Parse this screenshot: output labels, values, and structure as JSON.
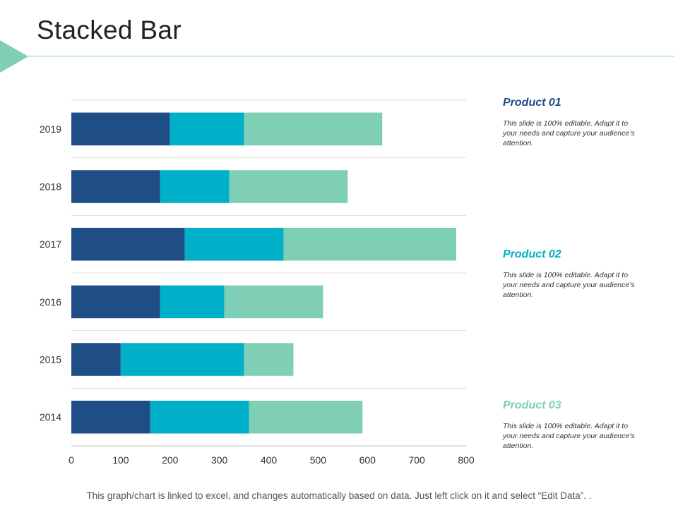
{
  "slide": {
    "title": "Stacked Bar",
    "footer": "This graph/chart is linked to excel, and changes automatically based on data. Just left click on it and select “Edit Data”. ."
  },
  "products": [
    {
      "name": "Product 01",
      "color": "#1f4e87",
      "description": "This slide is 100% editable. Adapt it to your needs and capture your audience’s attention."
    },
    {
      "name": "Product 02",
      "color": "#00b0c8",
      "description": "This slide is 100% editable. Adapt it to your needs and capture your audience’s attention."
    },
    {
      "name": "Product 03",
      "color": "#7ecfb5",
      "description": "This slide is 100% editable. Adapt it to your needs and capture your audience’s attention."
    }
  ],
  "chart_data": {
    "type": "bar",
    "orientation": "horizontal",
    "stacked": true,
    "categories": [
      "2019",
      "2018",
      "2017",
      "2016",
      "2015",
      "2014"
    ],
    "series": [
      {
        "name": "Product 01",
        "color": "#1f4e87",
        "values": [
          200,
          180,
          230,
          180,
          100,
          160
        ]
      },
      {
        "name": "Product 02",
        "color": "#00b0c8",
        "values": [
          150,
          140,
          200,
          130,
          250,
          200
        ]
      },
      {
        "name": "Product 03",
        "color": "#7ecfb5",
        "values": [
          280,
          240,
          350,
          200,
          100,
          230
        ]
      }
    ],
    "xlim": [
      0,
      800
    ],
    "xticks": [
      0,
      100,
      200,
      300,
      400,
      500,
      600,
      700,
      800
    ],
    "grid": true,
    "legend": "right"
  }
}
